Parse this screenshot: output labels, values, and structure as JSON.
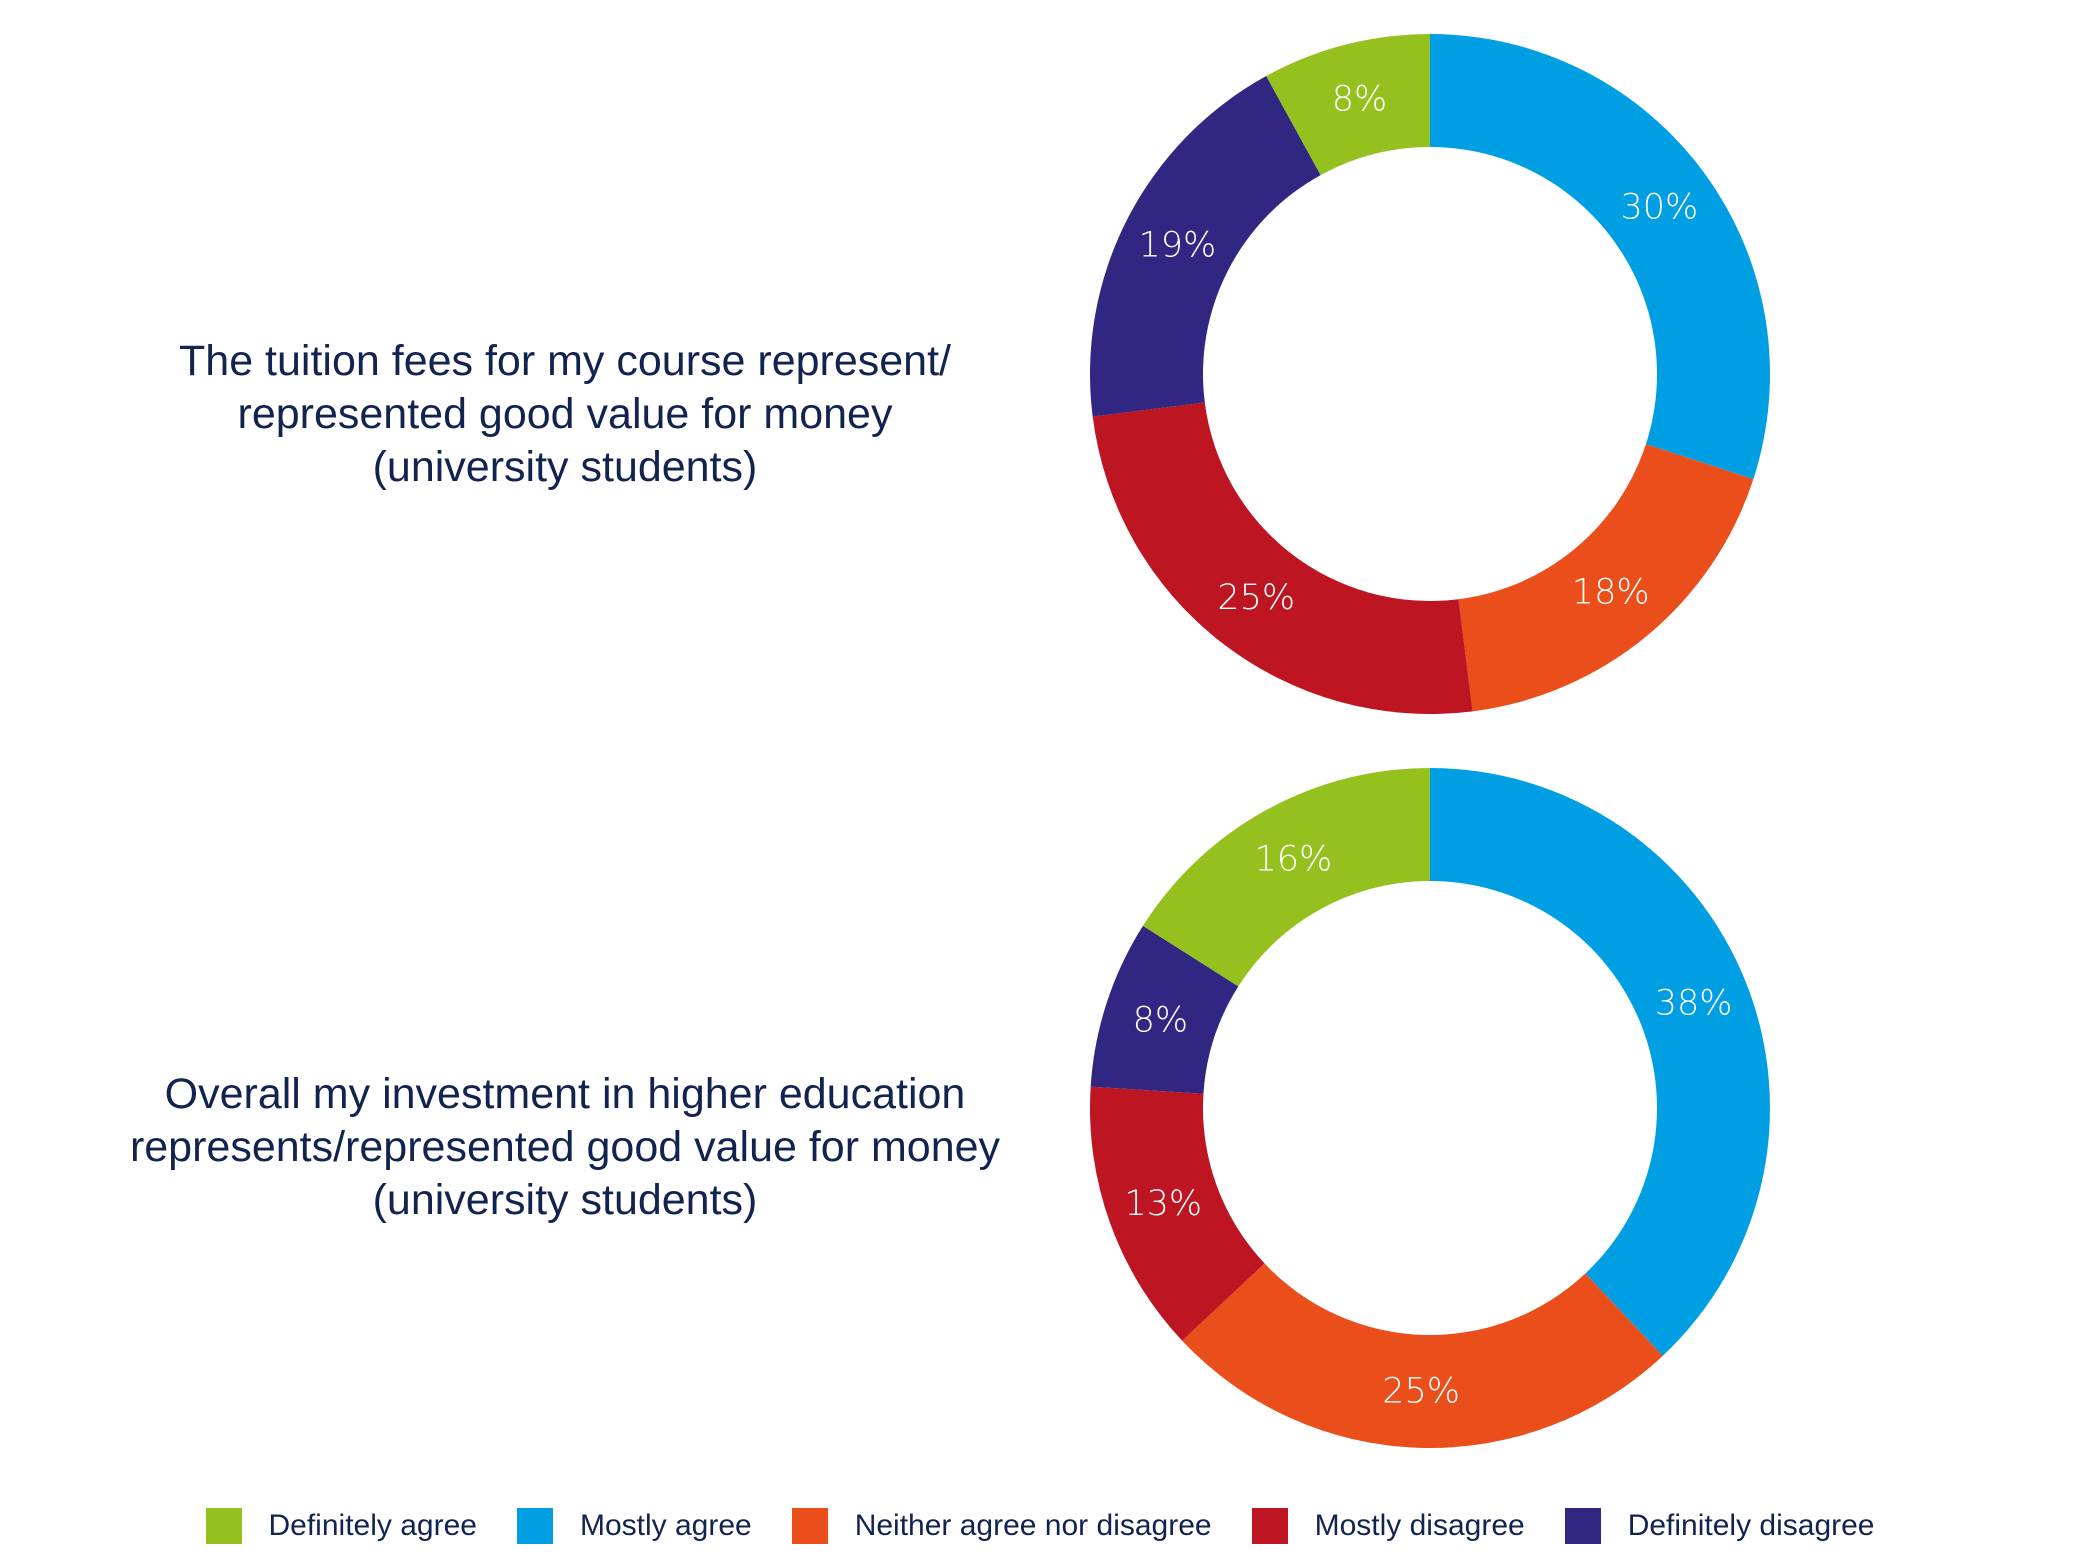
{
  "chart_data": [
    {
      "type": "pie",
      "variant": "donut",
      "title": "The tuition fees for my course represent/\nrepresented good value for money\n(university students)",
      "categories": [
        "Definitely agree",
        "Mostly agree",
        "Neither agree nor disagree",
        "Mostly disagree",
        "Definitely disagree"
      ],
      "values": [
        8,
        30,
        18,
        25,
        19
      ],
      "labels": [
        "8%",
        "30%",
        "18%",
        "25%",
        "19%"
      ],
      "unit": "%"
    },
    {
      "type": "pie",
      "variant": "donut",
      "title": "Overall my investment in higher education\nrepresents/represented good value for money\n(university students)",
      "categories": [
        "Definitely agree",
        "Mostly agree",
        "Neither agree nor disagree",
        "Mostly disagree",
        "Definitely disagree"
      ],
      "values": [
        16,
        38,
        25,
        13,
        8
      ],
      "labels": [
        "16%",
        "38%",
        "25%",
        "13%",
        "8%"
      ],
      "unit": "%"
    }
  ],
  "legend": {
    "placement": "bottom",
    "items": [
      {
        "label": "Definitely agree",
        "color": "#95c11f"
      },
      {
        "label": "Mostly agree",
        "color": "#009fe3"
      },
      {
        "label": "Neither agree nor disagree",
        "color": "#e94e1b"
      },
      {
        "label": "Mostly disagree",
        "color": "#be1522"
      },
      {
        "label": "Definitely disagree",
        "color": "#312783"
      }
    ]
  },
  "slice_order_from_top_clockwise": [
    "Mostly agree",
    "Neither agree nor disagree",
    "Mostly disagree",
    "Definitely disagree",
    "Definitely agree"
  ]
}
